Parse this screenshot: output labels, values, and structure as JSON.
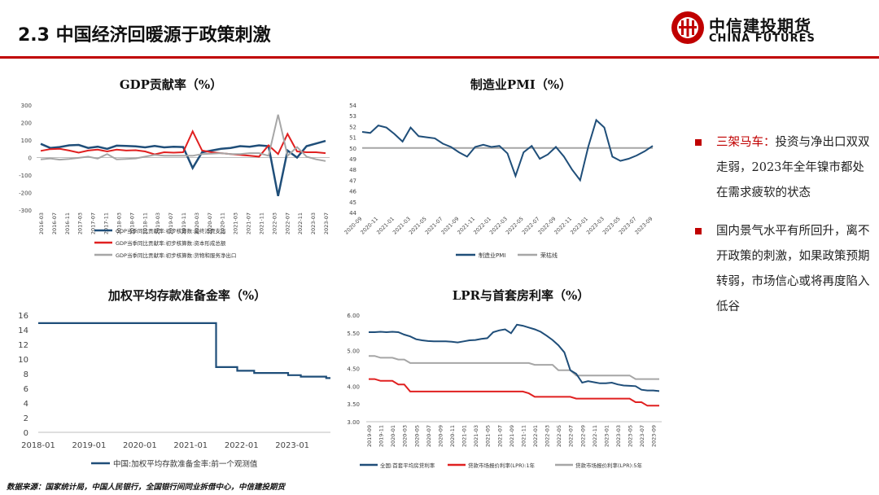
{
  "header": {
    "title": "2.3 中国经济回暖源于政策刺激",
    "logo_cn": "中信建投期货",
    "logo_en": "CHINA FUTURES",
    "brand_color": "#c00000"
  },
  "charts": {
    "gdp": {
      "title": "GDP贡献率（%）",
      "x_labels": [
        "2016-03",
        "2016-07",
        "2016-11",
        "2017-03",
        "2017-07",
        "2017-11",
        "2018-03",
        "2018-07",
        "2018-11",
        "2019-03",
        "2019-07",
        "2019-11",
        "2020-03",
        "2020-07",
        "2020-11",
        "2021-03",
        "2021-07",
        "2021-11",
        "2022-03",
        "2022-07",
        "2022-11",
        "2023-03",
        "2023-07"
      ],
      "y_ticks": [
        "300",
        "200",
        "100",
        "0",
        "-100",
        "-200",
        "-300"
      ],
      "legend": [
        "GDP当季同比贡献率:初步核算数:最终消费支出",
        "GDP当季同比贡献率:初步核算数:资本形成总额",
        "GDP当季同比贡献率:初步核算数:货物和服务净出口"
      ]
    },
    "pmi": {
      "title": "制造业PMI（%）",
      "x_labels": [
        "2020-09",
        "2020-11",
        "2021-01",
        "2021-03",
        "2021-05",
        "2021-07",
        "2021-09",
        "2021-11",
        "2022-01",
        "2022-03",
        "2022-05",
        "2022-07",
        "2022-09",
        "2022-11",
        "2023-01",
        "2023-03",
        "2023-05",
        "2023-07",
        "2023-09"
      ],
      "y_ticks": [
        "54",
        "53",
        "52",
        "51",
        "50",
        "49",
        "48",
        "47",
        "46",
        "45",
        "44"
      ],
      "legend": [
        "制造业PMI",
        "荣枯线"
      ]
    },
    "rrr": {
      "title": "加权平均存款准备金率（%）",
      "x_labels": [
        "2018-01",
        "2019-01",
        "2020-01",
        "2021-01",
        "2022-01",
        "2023-01"
      ],
      "y_ticks": [
        "16",
        "14",
        "12",
        "10",
        "8",
        "6",
        "4",
        "2",
        "0"
      ],
      "legend": [
        "中国:加权平均存款准备金率:前一个观测值"
      ]
    },
    "lpr": {
      "title": "LPR与首套房利率（%）",
      "x_labels": [
        "2019-09",
        "2019-11",
        "2020-01",
        "2020-03",
        "2020-05",
        "2020-07",
        "2020-09",
        "2020-11",
        "2021-01",
        "2021-03",
        "2021-05",
        "2021-07",
        "2021-09",
        "2021-11",
        "2022-01",
        "2022-03",
        "2022-05",
        "2022-07",
        "2022-09",
        "2022-11",
        "2023-01",
        "2023-03",
        "2023-05",
        "2023-07",
        "2023-09"
      ],
      "y_ticks": [
        "6.00",
        "5.50",
        "5.00",
        "4.50",
        "4.00",
        "3.50",
        "3.00"
      ],
      "legend": [
        "全国:首套平均房贷利率",
        "贷款市场报价利率(LPR):1年",
        "贷款市场报价利率(LPR):5年"
      ]
    }
  },
  "chart_data": [
    {
      "type": "line",
      "title": "GDP贡献率（%）",
      "ylim": [
        -300,
        300
      ],
      "x": [
        "2016-03",
        "2016-06",
        "2016-09",
        "2016-12",
        "2017-03",
        "2017-06",
        "2017-09",
        "2017-12",
        "2018-03",
        "2018-06",
        "2018-09",
        "2018-12",
        "2019-03",
        "2019-06",
        "2019-09",
        "2019-12",
        "2020-03",
        "2020-06",
        "2020-09",
        "2020-12",
        "2021-03",
        "2021-06",
        "2021-09",
        "2021-12",
        "2022-03",
        "2022-06",
        "2022-09",
        "2022-12",
        "2023-03",
        "2023-06",
        "2023-09"
      ],
      "series": [
        {
          "name": "GDP当季同比贡献率:初步核算数:最终消费支出",
          "color": "#1f4e79",
          "values": [
            78,
            55,
            60,
            70,
            72,
            55,
            62,
            50,
            68,
            66,
            64,
            58,
            66,
            58,
            62,
            60,
            -60,
            30,
            40,
            50,
            55,
            65,
            62,
            70,
            65,
            -220,
            40,
            0,
            65,
            80,
            95
          ]
        },
        {
          "name": "GDP当季同比贡献率:初步核算数:资本形成总额",
          "color": "#e02020",
          "values": [
            38,
            48,
            50,
            40,
            28,
            40,
            45,
            35,
            45,
            40,
            42,
            35,
            18,
            30,
            28,
            30,
            150,
            40,
            30,
            25,
            20,
            15,
            10,
            5,
            70,
            20,
            135,
            35,
            30,
            30,
            25
          ]
        },
        {
          "name": "GDP当季同比贡献率:初步核算数:货物和服务净出口",
          "color": "#a6a6a6",
          "values": [
            -10,
            -5,
            -12,
            -8,
            -2,
            5,
            -6,
            20,
            -10,
            -8,
            -5,
            5,
            15,
            10,
            10,
            10,
            10,
            20,
            22,
            25,
            20,
            20,
            25,
            25,
            10,
            245,
            10,
            60,
            5,
            -10,
            -20
          ]
        }
      ]
    },
    {
      "type": "line",
      "title": "制造业PMI（%）",
      "ylim": [
        44,
        54
      ],
      "x": [
        "2020-09",
        "2020-10",
        "2020-11",
        "2020-12",
        "2021-01",
        "2021-02",
        "2021-03",
        "2021-04",
        "2021-05",
        "2021-06",
        "2021-07",
        "2021-08",
        "2021-09",
        "2021-10",
        "2021-11",
        "2021-12",
        "2022-01",
        "2022-02",
        "2022-03",
        "2022-04",
        "2022-05",
        "2022-06",
        "2022-07",
        "2022-08",
        "2022-09",
        "2022-10",
        "2022-11",
        "2022-12",
        "2023-01",
        "2023-02",
        "2023-03",
        "2023-04",
        "2023-05",
        "2023-06",
        "2023-07",
        "2023-08",
        "2023-09"
      ],
      "series": [
        {
          "name": "制造业PMI",
          "color": "#1f4e79",
          "values": [
            51.5,
            51.4,
            52.1,
            51.9,
            51.3,
            50.6,
            51.9,
            51.1,
            51.0,
            50.9,
            50.4,
            50.1,
            49.6,
            49.2,
            50.1,
            50.3,
            50.1,
            50.2,
            49.5,
            47.4,
            49.6,
            50.2,
            49.0,
            49.4,
            50.1,
            49.2,
            48.0,
            47.0,
            50.1,
            52.6,
            51.9,
            49.2,
            48.8,
            49.0,
            49.3,
            49.7,
            50.2
          ]
        },
        {
          "name": "荣枯线",
          "color": "#a6a6a6",
          "values": [
            50,
            50,
            50,
            50,
            50,
            50,
            50,
            50,
            50,
            50,
            50,
            50,
            50,
            50,
            50,
            50,
            50,
            50,
            50,
            50,
            50,
            50,
            50,
            50,
            50,
            50,
            50,
            50,
            50,
            50,
            50,
            50,
            50,
            50,
            50,
            50,
            50
          ]
        }
      ]
    },
    {
      "type": "line",
      "title": "加权平均存款准备金率（%）",
      "ylim": [
        0,
        16
      ],
      "series": [
        {
          "name": "中国:加权平均存款准备金率:前一个观测值",
          "color": "#1f4e79",
          "points": [
            [
              "2018-01",
              14.9
            ],
            [
              "2021-07",
              14.9
            ],
            [
              "2021-07",
              8.9
            ],
            [
              "2021-12",
              8.9
            ],
            [
              "2021-12",
              8.4
            ],
            [
              "2022-04",
              8.4
            ],
            [
              "2022-04",
              8.1
            ],
            [
              "2022-12",
              8.1
            ],
            [
              "2022-12",
              7.8
            ],
            [
              "2023-03",
              7.8
            ],
            [
              "2023-03",
              7.6
            ],
            [
              "2023-09",
              7.6
            ],
            [
              "2023-09",
              7.4
            ],
            [
              "2023-10",
              7.4
            ]
          ]
        }
      ]
    },
    {
      "type": "line",
      "title": "LPR与首套房利率（%）",
      "ylim": [
        3.0,
        6.0
      ],
      "x": [
        "2019-09",
        "2019-10",
        "2019-11",
        "2019-12",
        "2020-01",
        "2020-02",
        "2020-03",
        "2020-04",
        "2020-05",
        "2020-06",
        "2020-07",
        "2020-08",
        "2020-09",
        "2020-10",
        "2020-11",
        "2020-12",
        "2021-01",
        "2021-02",
        "2021-03",
        "2021-04",
        "2021-05",
        "2021-06",
        "2021-07",
        "2021-08",
        "2021-09",
        "2021-10",
        "2021-11",
        "2021-12",
        "2022-01",
        "2022-02",
        "2022-03",
        "2022-04",
        "2022-05",
        "2022-06",
        "2022-07",
        "2022-08",
        "2022-09",
        "2022-10",
        "2022-11",
        "2022-12",
        "2023-01",
        "2023-02",
        "2023-03",
        "2023-04",
        "2023-05",
        "2023-06",
        "2023-07",
        "2023-08",
        "2023-09",
        "2023-10"
      ],
      "series": [
        {
          "name": "全国:首套平均房贷利率",
          "color": "#1f4e79",
          "values": [
            5.52,
            5.52,
            5.53,
            5.52,
            5.53,
            5.52,
            5.45,
            5.4,
            5.32,
            5.29,
            5.27,
            5.26,
            5.26,
            5.26,
            5.25,
            5.23,
            5.26,
            5.29,
            5.3,
            5.33,
            5.35,
            5.52,
            5.57,
            5.6,
            5.49,
            5.73,
            5.7,
            5.65,
            5.6,
            5.53,
            5.42,
            5.3,
            5.15,
            4.95,
            4.45,
            4.35,
            4.1,
            4.14,
            4.11,
            4.08,
            4.08,
            4.1,
            4.05,
            4.02,
            4.01,
            4.0,
            3.9,
            3.88,
            3.88,
            3.86
          ]
        },
        {
          "name": "贷款市场报价利率(LPR):1年",
          "color": "#e02020",
          "values": [
            4.2,
            4.2,
            4.15,
            4.15,
            4.15,
            4.05,
            4.05,
            3.85,
            3.85,
            3.85,
            3.85,
            3.85,
            3.85,
            3.85,
            3.85,
            3.85,
            3.85,
            3.85,
            3.85,
            3.85,
            3.85,
            3.85,
            3.85,
            3.85,
            3.85,
            3.85,
            3.85,
            3.8,
            3.7,
            3.7,
            3.7,
            3.7,
            3.7,
            3.7,
            3.7,
            3.65,
            3.65,
            3.65,
            3.65,
            3.65,
            3.65,
            3.65,
            3.65,
            3.65,
            3.65,
            3.55,
            3.55,
            3.45,
            3.45,
            3.45
          ]
        },
        {
          "name": "贷款市场报价利率(LPR):5年",
          "color": "#a6a6a6",
          "values": [
            4.85,
            4.85,
            4.8,
            4.8,
            4.8,
            4.75,
            4.75,
            4.65,
            4.65,
            4.65,
            4.65,
            4.65,
            4.65,
            4.65,
            4.65,
            4.65,
            4.65,
            4.65,
            4.65,
            4.65,
            4.65,
            4.65,
            4.65,
            4.65,
            4.65,
            4.65,
            4.65,
            4.65,
            4.6,
            4.6,
            4.6,
            4.6,
            4.45,
            4.45,
            4.45,
            4.3,
            4.3,
            4.3,
            4.3,
            4.3,
            4.3,
            4.3,
            4.3,
            4.3,
            4.3,
            4.2,
            4.2,
            4.2,
            4.2,
            4.2
          ]
        }
      ]
    }
  ],
  "bullets": [
    {
      "highlight": "三架马车：",
      "text": "投资与净出口双双走弱，2023年全年镍市都处在需求疲软的状态"
    },
    {
      "highlight": "",
      "text": "国内景气水平有所回升，离不开政策的刺激，如果政策预期转弱，市场信心或将再度陷入低谷"
    }
  ],
  "footer": {
    "source": "数据来源：国家统计局，中国人民银行，全国银行间同业拆借中心，中信建投期货"
  }
}
